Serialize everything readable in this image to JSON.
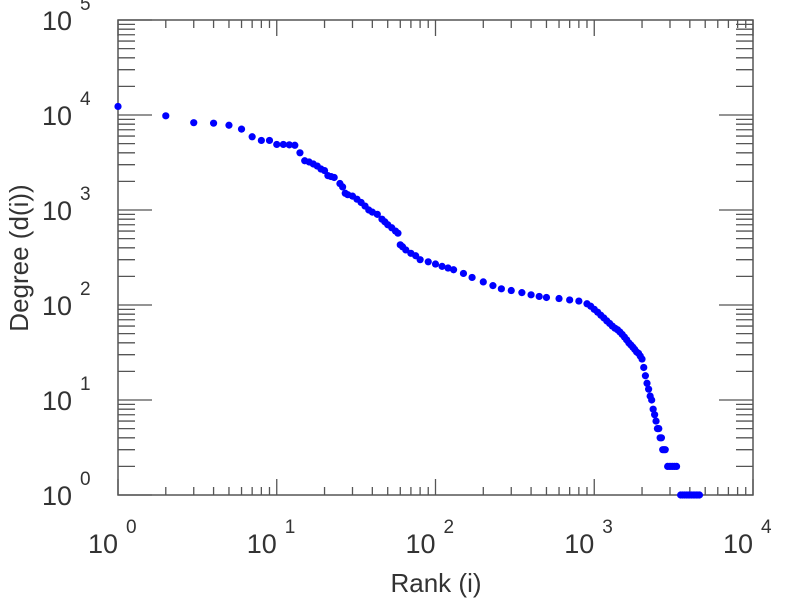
{
  "chart_data": {
    "type": "scatter",
    "title": "",
    "xlabel": "Rank (i)",
    "ylabel": "Degree (d(i))",
    "xscale": "log",
    "yscale": "log",
    "xlim": [
      1,
      10000
    ],
    "ylim": [
      1,
      100000
    ],
    "grid": false,
    "marker_color": "#0000ff",
    "axis_color": "#555555",
    "x_ticks": [
      {
        "base": "10",
        "exp": "0",
        "value": 1
      },
      {
        "base": "10",
        "exp": "1",
        "value": 10
      },
      {
        "base": "10",
        "exp": "2",
        "value": 100
      },
      {
        "base": "10",
        "exp": "3",
        "value": 1000
      },
      {
        "base": "10",
        "exp": "4",
        "value": 10000
      }
    ],
    "y_ticks": [
      {
        "base": "10",
        "exp": "0",
        "value": 1
      },
      {
        "base": "10",
        "exp": "1",
        "value": 10
      },
      {
        "base": "10",
        "exp": "2",
        "value": 100
      },
      {
        "base": "10",
        "exp": "3",
        "value": 1000
      },
      {
        "base": "10",
        "exp": "4",
        "value": 10000
      },
      {
        "base": "10",
        "exp": "5",
        "value": 100000
      }
    ],
    "points": [
      [
        1,
        12300
      ],
      [
        2,
        9800
      ],
      [
        3,
        8300
      ],
      [
        4,
        8200
      ],
      [
        5,
        7800
      ],
      [
        6,
        7100
      ],
      [
        7,
        5900
      ],
      [
        8,
        5400
      ],
      [
        9,
        5400
      ],
      [
        10,
        4900
      ],
      [
        11,
        4900
      ],
      [
        12,
        4850
      ],
      [
        13,
        4800
      ],
      [
        14,
        4000
      ],
      [
        15,
        3300
      ],
      [
        16,
        3200
      ],
      [
        17,
        3050
      ],
      [
        18,
        2900
      ],
      [
        19,
        2700
      ],
      [
        20,
        2600
      ],
      [
        21,
        2300
      ],
      [
        22,
        2250
      ],
      [
        23,
        2200
      ],
      [
        25,
        1900
      ],
      [
        26,
        1750
      ],
      [
        27,
        1500
      ],
      [
        28,
        1450
      ],
      [
        30,
        1400
      ],
      [
        32,
        1300
      ],
      [
        34,
        1200
      ],
      [
        36,
        1100
      ],
      [
        38,
        1000
      ],
      [
        40,
        950
      ],
      [
        43,
        900
      ],
      [
        46,
        800
      ],
      [
        48,
        750
      ],
      [
        50,
        700
      ],
      [
        53,
        650
      ],
      [
        56,
        600
      ],
      [
        58,
        570
      ],
      [
        60,
        430
      ],
      [
        62,
        410
      ],
      [
        65,
        380
      ],
      [
        70,
        350
      ],
      [
        75,
        330
      ],
      [
        80,
        300
      ],
      [
        90,
        285
      ],
      [
        100,
        270
      ],
      [
        110,
        255
      ],
      [
        120,
        245
      ],
      [
        130,
        235
      ],
      [
        150,
        215
      ],
      [
        170,
        195
      ],
      [
        200,
        175
      ],
      [
        230,
        160
      ],
      [
        260,
        148
      ],
      [
        300,
        142
      ],
      [
        350,
        135
      ],
      [
        400,
        128
      ],
      [
        450,
        123
      ],
      [
        500,
        120
      ],
      [
        600,
        117
      ],
      [
        700,
        113
      ],
      [
        800,
        110
      ],
      [
        900,
        103
      ],
      [
        950,
        97
      ],
      [
        1000,
        90
      ],
      [
        1050,
        84
      ],
      [
        1100,
        78
      ],
      [
        1150,
        73
      ],
      [
        1200,
        68
      ],
      [
        1250,
        64
      ],
      [
        1300,
        60
      ],
      [
        1350,
        57
      ],
      [
        1400,
        55
      ],
      [
        1450,
        52
      ],
      [
        1500,
        49
      ],
      [
        1550,
        46
      ],
      [
        1600,
        43
      ],
      [
        1650,
        40
      ],
      [
        1700,
        38
      ],
      [
        1750,
        36
      ],
      [
        1800,
        34
      ],
      [
        1850,
        32
      ],
      [
        1900,
        31
      ],
      [
        1950,
        29
      ],
      [
        2000,
        27
      ],
      [
        2050,
        22
      ],
      [
        2100,
        18
      ],
      [
        2150,
        15
      ],
      [
        2200,
        13
      ],
      [
        2250,
        11
      ],
      [
        2300,
        10
      ],
      [
        2350,
        8
      ],
      [
        2400,
        7
      ],
      [
        2450,
        6
      ],
      [
        2500,
        5
      ],
      [
        2550,
        5
      ],
      [
        2600,
        4
      ],
      [
        2650,
        4
      ],
      [
        2700,
        3
      ],
      [
        2750,
        3
      ],
      [
        2800,
        3
      ],
      [
        2900,
        2
      ],
      [
        3000,
        2
      ],
      [
        3100,
        2
      ],
      [
        3200,
        2
      ],
      [
        3300,
        2
      ],
      [
        3500,
        1
      ],
      [
        3600,
        1
      ],
      [
        3700,
        1
      ],
      [
        3800,
        1
      ],
      [
        3900,
        1
      ],
      [
        4000,
        1
      ],
      [
        4100,
        1
      ],
      [
        4200,
        1
      ],
      [
        4300,
        1
      ],
      [
        4400,
        1
      ],
      [
        4500,
        1
      ],
      [
        4600,
        1
      ]
    ]
  }
}
